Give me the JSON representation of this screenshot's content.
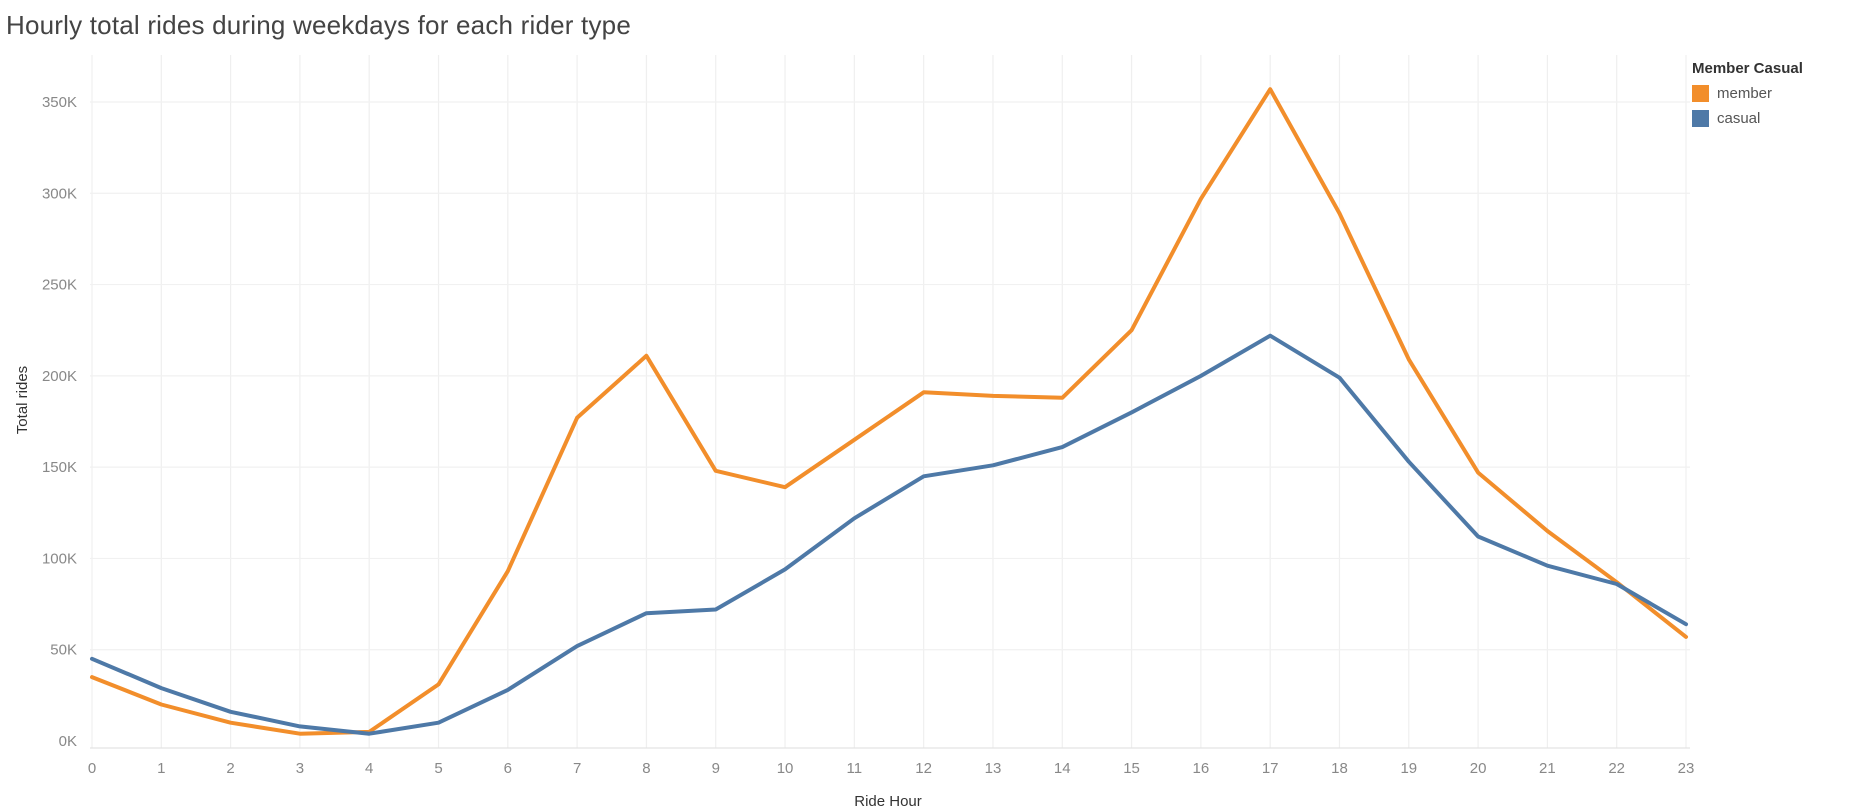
{
  "chart_data": {
    "type": "line",
    "title": "Hourly total rides during weekdays for each rider type",
    "xlabel": "Ride Hour",
    "ylabel": "Total rides",
    "categories": [
      "0",
      "1",
      "2",
      "3",
      "4",
      "5",
      "6",
      "7",
      "8",
      "9",
      "10",
      "11",
      "12",
      "13",
      "14",
      "15",
      "16",
      "17",
      "18",
      "19",
      "20",
      "21",
      "22",
      "23"
    ],
    "ylim": [
      0,
      370000
    ],
    "yticks": [
      0,
      50000,
      100000,
      150000,
      200000,
      250000,
      300000,
      350000
    ],
    "ytick_labels": [
      "0K",
      "50K",
      "100K",
      "150K",
      "200K",
      "250K",
      "300K",
      "350K"
    ],
    "grid": true,
    "legend": {
      "title": "Member Casual",
      "placement": "top-right"
    },
    "series": [
      {
        "name": "member",
        "color": "#F28E2B",
        "values": [
          35000,
          20000,
          10000,
          4000,
          5000,
          31000,
          93000,
          177000,
          211000,
          148000,
          139000,
          165000,
          191000,
          189000,
          188000,
          225000,
          297000,
          357000,
          289000,
          209000,
          147000,
          115000,
          87000,
          57000
        ]
      },
      {
        "name": "casual",
        "color": "#4E79A7",
        "values": [
          45000,
          29000,
          16000,
          8000,
          4000,
          10000,
          28000,
          52000,
          70000,
          72000,
          94000,
          122000,
          145000,
          151000,
          161000,
          180000,
          200000,
          222000,
          199000,
          153000,
          112000,
          96000,
          86000,
          64000
        ]
      }
    ]
  }
}
